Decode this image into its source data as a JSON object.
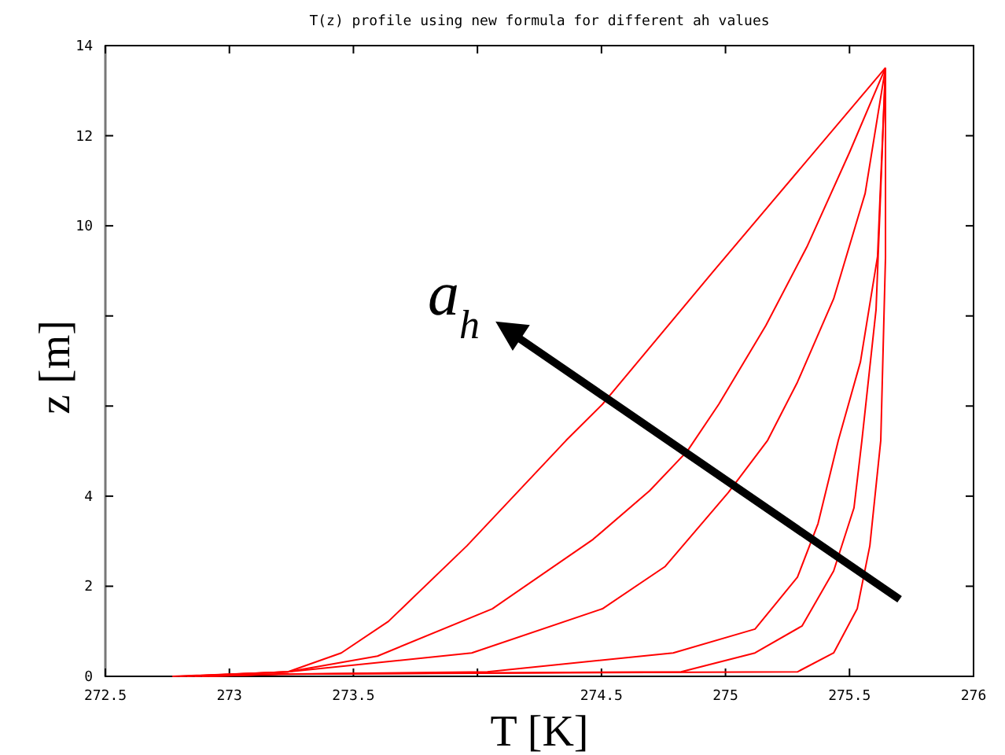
{
  "chart_data": {
    "type": "line",
    "title": "T(z) profile using new formula for different ah values",
    "xlabel": "T [K]",
    "ylabel": "z [m]",
    "xlim": [
      272.5,
      276
    ],
    "ylim": [
      0,
      14
    ],
    "xticks": [
      272.5,
      273,
      273.5,
      {
        "value": 274,
        "label": null
      },
      274.5,
      275,
      275.5,
      276
    ],
    "yticks": [
      0,
      2,
      4,
      {
        "value": 6,
        "label": null
      },
      {
        "value": 8,
        "label": null
      },
      10,
      12,
      14
    ],
    "grid": false,
    "marker": "none",
    "line_style": "solid",
    "annotations": [
      "a$_{h}$"
    ],
    "series": [
      {
        "color": "#ff0000",
        "x": [
          272.77,
          273.236,
          273.451,
          273.641,
          273.958,
          274.358,
          274.504,
          274.948,
          275.645
        ],
        "values": [
          0,
          0.1,
          0.52,
          1.22,
          2.9,
          5.24,
          6.04,
          8.97,
          13.51
        ]
      },
      {
        "color": "#ff0000",
        "x": [
          272.8,
          273.236,
          273.597,
          274.06,
          274.466,
          274.694,
          274.846,
          274.973,
          275.163,
          275.328,
          275.5,
          275.645
        ],
        "values": [
          0,
          0.1,
          0.45,
          1.5,
          3.04,
          4.12,
          5.0,
          6.04,
          7.79,
          9.53,
          11.63,
          13.51
        ]
      },
      {
        "color": "#ff0000",
        "x": [
          272.83,
          273.236,
          273.977,
          274.504,
          274.757,
          275.011,
          275.17,
          275.29,
          275.436,
          275.563,
          275.645
        ],
        "values": [
          0,
          0.1,
          0.52,
          1.5,
          2.44,
          4.08,
          5.24,
          6.53,
          8.38,
          10.72,
          13.51
        ]
      },
      {
        "color": "#ff0000",
        "x": [
          272.86,
          273.2,
          274.04,
          274.789,
          275.119,
          275.29,
          275.373,
          275.455,
          275.544,
          275.613,
          275.645
        ],
        "values": [
          0,
          0.05,
          0.1,
          0.52,
          1.05,
          2.2,
          3.39,
          5.24,
          6.98,
          9.32,
          13.51
        ]
      },
      {
        "color": "#ff0000",
        "x": [
          272.89,
          273.2,
          274.821,
          275.119,
          275.309,
          275.436,
          275.518,
          275.55,
          275.607,
          275.645
        ],
        "values": [
          0,
          0.05,
          0.1,
          0.52,
          1.12,
          2.34,
          3.74,
          5.24,
          8.14,
          13.51
        ]
      },
      {
        "color": "#ff0000",
        "x": [
          272.92,
          273.2,
          275.29,
          275.436,
          275.531,
          275.582,
          275.626,
          275.645,
          275.645
        ],
        "values": [
          0,
          0.05,
          0.1,
          0.52,
          1.5,
          2.9,
          5.24,
          9.3,
          13.51
        ]
      }
    ]
  }
}
